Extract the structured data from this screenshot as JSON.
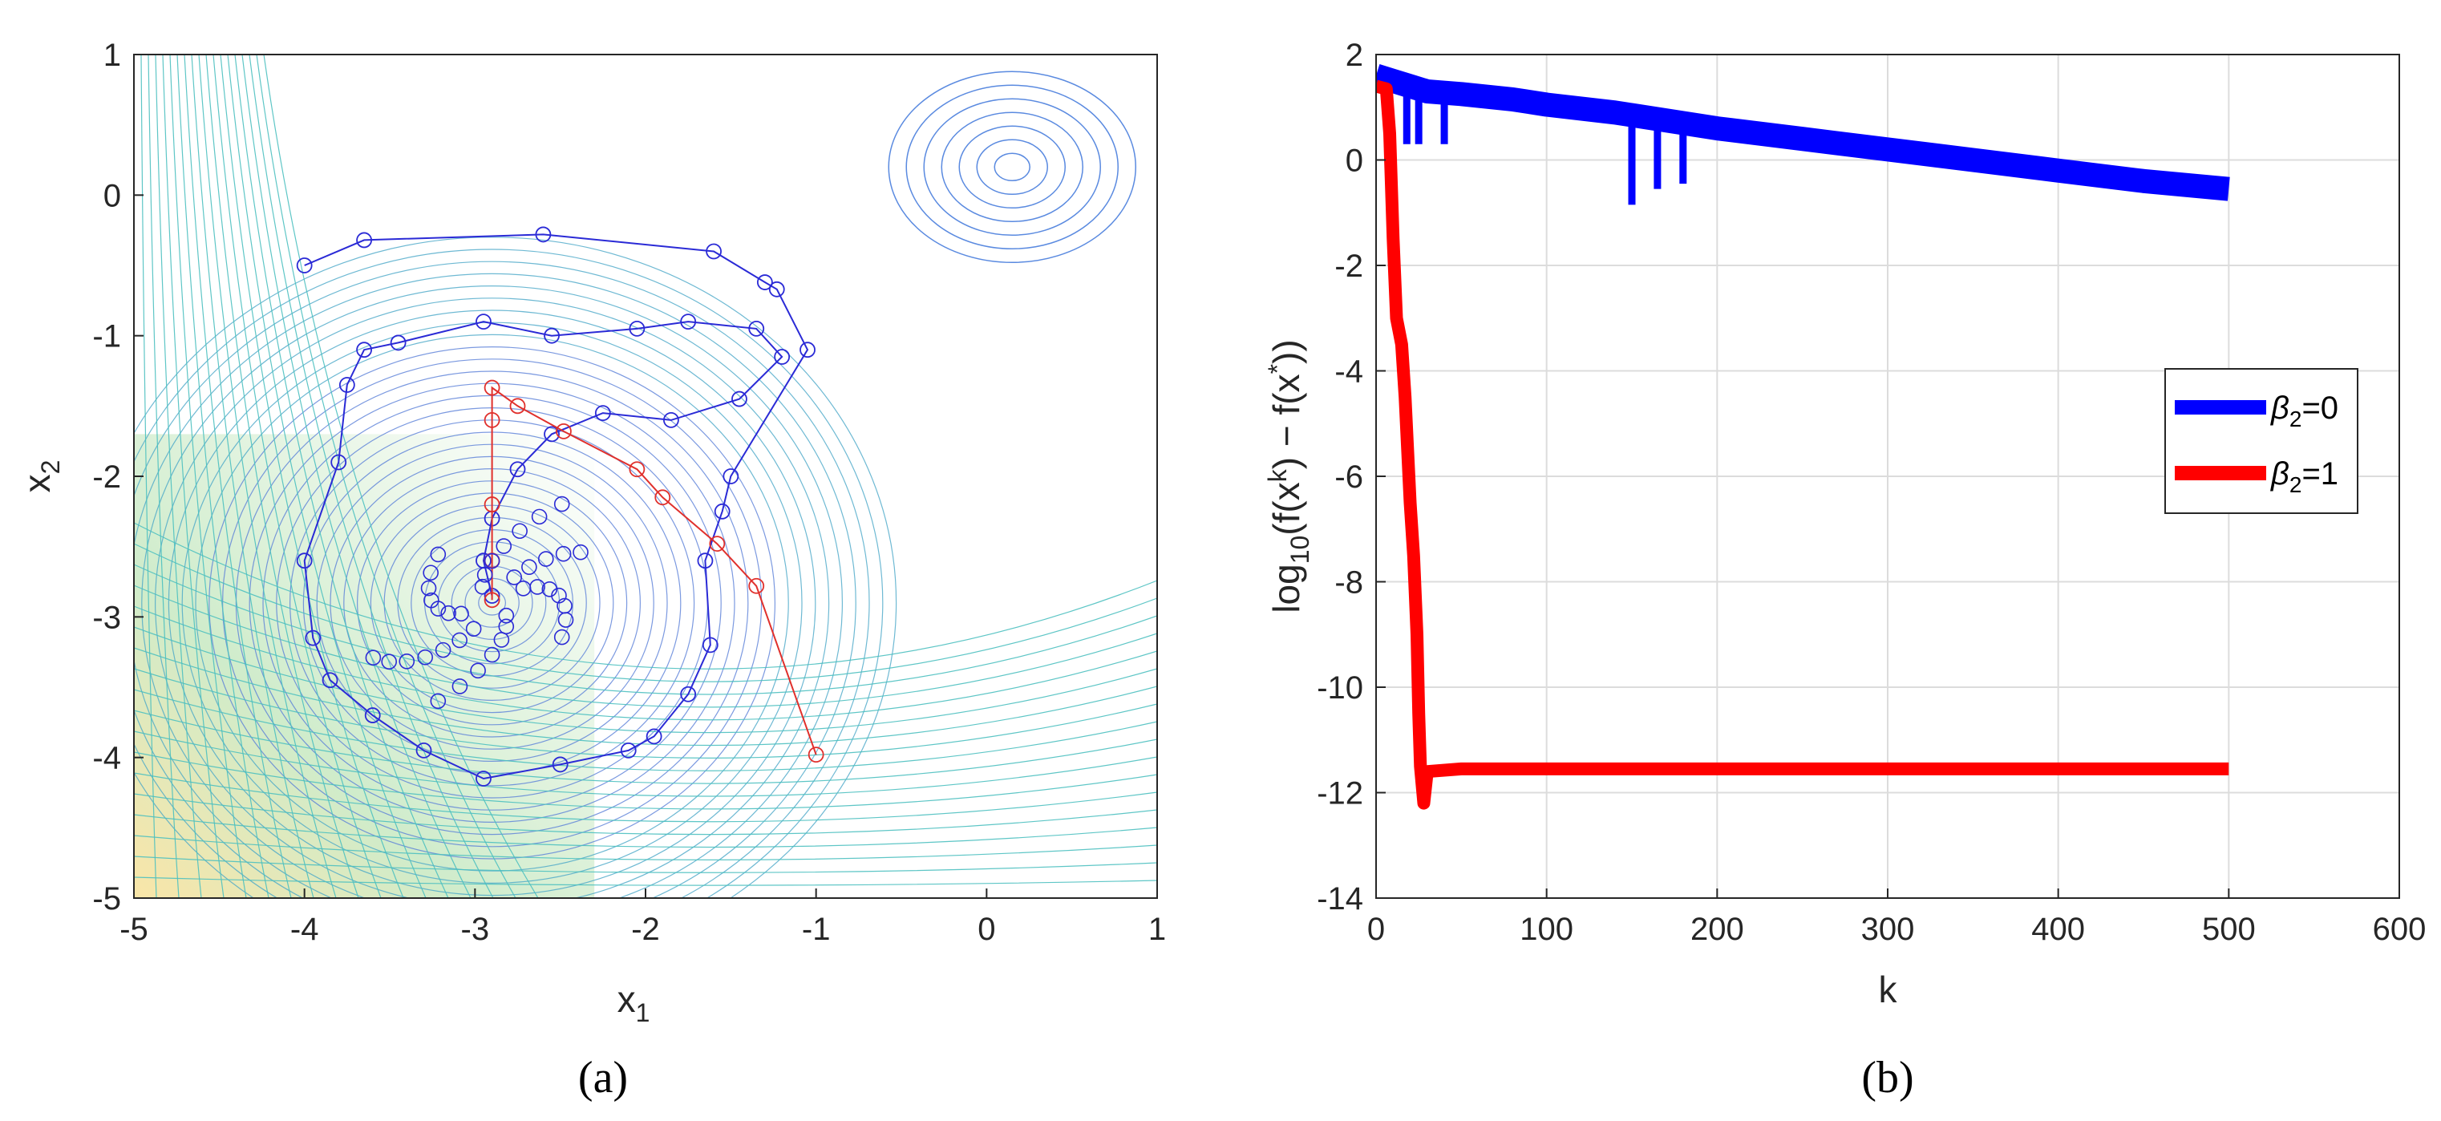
{
  "chart_data": [
    {
      "type": "contour",
      "panel_label": "(a)",
      "xlabel": "x",
      "xlabel_sub": "1",
      "ylabel": "x",
      "ylabel_sub": "2",
      "xlim": [
        -5,
        1
      ],
      "ylim": [
        -5,
        1
      ],
      "xticks": [
        "-5",
        "-4",
        "-3",
        "-2",
        "-1",
        "0",
        "1"
      ],
      "yticks": [
        "1",
        "0",
        "-1",
        "-2",
        "-3",
        "-4",
        "-5"
      ],
      "series": [
        {
          "name": "beta2=0 trajectory",
          "color": "#2a2ad6",
          "points": [
            [
              -4.0,
              -0.5
            ],
            [
              -3.65,
              -0.32
            ],
            [
              -2.6,
              -0.28
            ],
            [
              -1.6,
              -0.4
            ],
            [
              -1.3,
              -0.62
            ],
            [
              -1.23,
              -0.67
            ],
            [
              -1.05,
              -1.1
            ],
            [
              -1.5,
              -2.0
            ],
            [
              -1.55,
              -2.25
            ],
            [
              -1.65,
              -2.6
            ],
            [
              -1.62,
              -3.2
            ],
            [
              -1.75,
              -3.55
            ],
            [
              -1.95,
              -3.85
            ],
            [
              -2.1,
              -3.95
            ],
            [
              -2.5,
              -4.05
            ],
            [
              -2.95,
              -4.15
            ],
            [
              -3.3,
              -3.95
            ],
            [
              -3.6,
              -3.7
            ],
            [
              -3.85,
              -3.45
            ],
            [
              -3.95,
              -3.15
            ],
            [
              -4.0,
              -2.6
            ],
            [
              -3.8,
              -1.9
            ],
            [
              -3.75,
              -1.35
            ],
            [
              -3.65,
              -1.1
            ],
            [
              -3.45,
              -1.05
            ],
            [
              -2.95,
              -0.9
            ],
            [
              -2.55,
              -1.0
            ],
            [
              -2.05,
              -0.95
            ],
            [
              -1.75,
              -0.9
            ],
            [
              -1.35,
              -0.95
            ],
            [
              -1.2,
              -1.15
            ],
            [
              -1.45,
              -1.45
            ],
            [
              -1.85,
              -1.6
            ],
            [
              -2.25,
              -1.55
            ],
            [
              -2.55,
              -1.7
            ],
            [
              -2.75,
              -1.95
            ],
            [
              -2.9,
              -2.3
            ],
            [
              -2.95,
              -2.6
            ],
            [
              -2.9,
              -2.85
            ]
          ]
        },
        {
          "name": "beta2=1 trajectory",
          "color": "#e0302c",
          "points": [
            [
              -1.0,
              -3.98
            ],
            [
              -1.35,
              -2.78
            ],
            [
              -1.58,
              -2.48
            ],
            [
              -1.9,
              -2.15
            ],
            [
              -2.05,
              -1.95
            ],
            [
              -2.48,
              -1.68
            ],
            [
              -2.75,
              -1.5
            ],
            [
              -2.9,
              -1.37
            ],
            [
              -2.9,
              -1.6
            ],
            [
              -2.9,
              -2.2
            ],
            [
              -2.9,
              -2.6
            ],
            [
              -2.9,
              -2.88
            ]
          ]
        }
      ]
    },
    {
      "type": "line",
      "panel_label": "(b)",
      "xlabel": "k",
      "ylabel": "log10(f(x^k) − f(x*))",
      "ylabel_parts": {
        "pre": "log",
        "sub": "10",
        "mid1": "(f(x",
        "sup1": "k",
        "mid2": ") − f(x",
        "sup2": "*",
        "post": "))"
      },
      "xlim": [
        0,
        600
      ],
      "ylim": [
        -14,
        2
      ],
      "xticks": [
        "0",
        "100",
        "200",
        "300",
        "400",
        "500",
        "600"
      ],
      "yticks": [
        "2",
        "0",
        "-2",
        "-4",
        "-6",
        "-8",
        "-10",
        "-12",
        "-14"
      ],
      "legend_position": "right",
      "series": [
        {
          "name": "β₂=0",
          "label_sym": "β",
          "label_sub": "2",
          "label_rest": "=0",
          "color": "#0000ff",
          "points": [
            [
              0,
              1.6
            ],
            [
              10,
              1.5
            ],
            [
              20,
              1.4
            ],
            [
              30,
              1.3
            ],
            [
              50,
              1.25
            ],
            [
              80,
              1.15
            ],
            [
              100,
              1.05
            ],
            [
              140,
              0.9
            ],
            [
              150,
              0.85
            ],
            [
              200,
              0.6
            ],
            [
              250,
              0.4
            ],
            [
              300,
              0.2
            ],
            [
              350,
              0.0
            ],
            [
              400,
              -0.2
            ],
            [
              450,
              -0.4
            ],
            [
              500,
              -0.55
            ]
          ],
          "dips": [
            [
              18,
              0.3
            ],
            [
              25,
              0.3
            ],
            [
              40,
              0.3
            ],
            [
              70,
              1.1
            ],
            [
              150,
              -0.85
            ],
            [
              165,
              -0.55
            ],
            [
              180,
              -0.45
            ]
          ]
        },
        {
          "name": "β₂=1",
          "label_sym": "β",
          "label_sub": "2",
          "label_rest": "=1",
          "color": "#ff0000",
          "points": [
            [
              0,
              1.4
            ],
            [
              6,
              1.35
            ],
            [
              8,
              0.5
            ],
            [
              10,
              -1.5
            ],
            [
              12,
              -3.0
            ],
            [
              15,
              -3.5
            ],
            [
              17,
              -4.5
            ],
            [
              20,
              -6.5
            ],
            [
              22,
              -7.5
            ],
            [
              24,
              -9.0
            ],
            [
              25,
              -10.5
            ],
            [
              26,
              -11.5
            ],
            [
              28,
              -12.2
            ],
            [
              30,
              -11.6
            ],
            [
              50,
              -11.55
            ],
            [
              100,
              -11.55
            ],
            [
              200,
              -11.55
            ],
            [
              300,
              -11.55
            ],
            [
              400,
              -11.55
            ],
            [
              500,
              -11.55
            ]
          ]
        }
      ]
    }
  ]
}
